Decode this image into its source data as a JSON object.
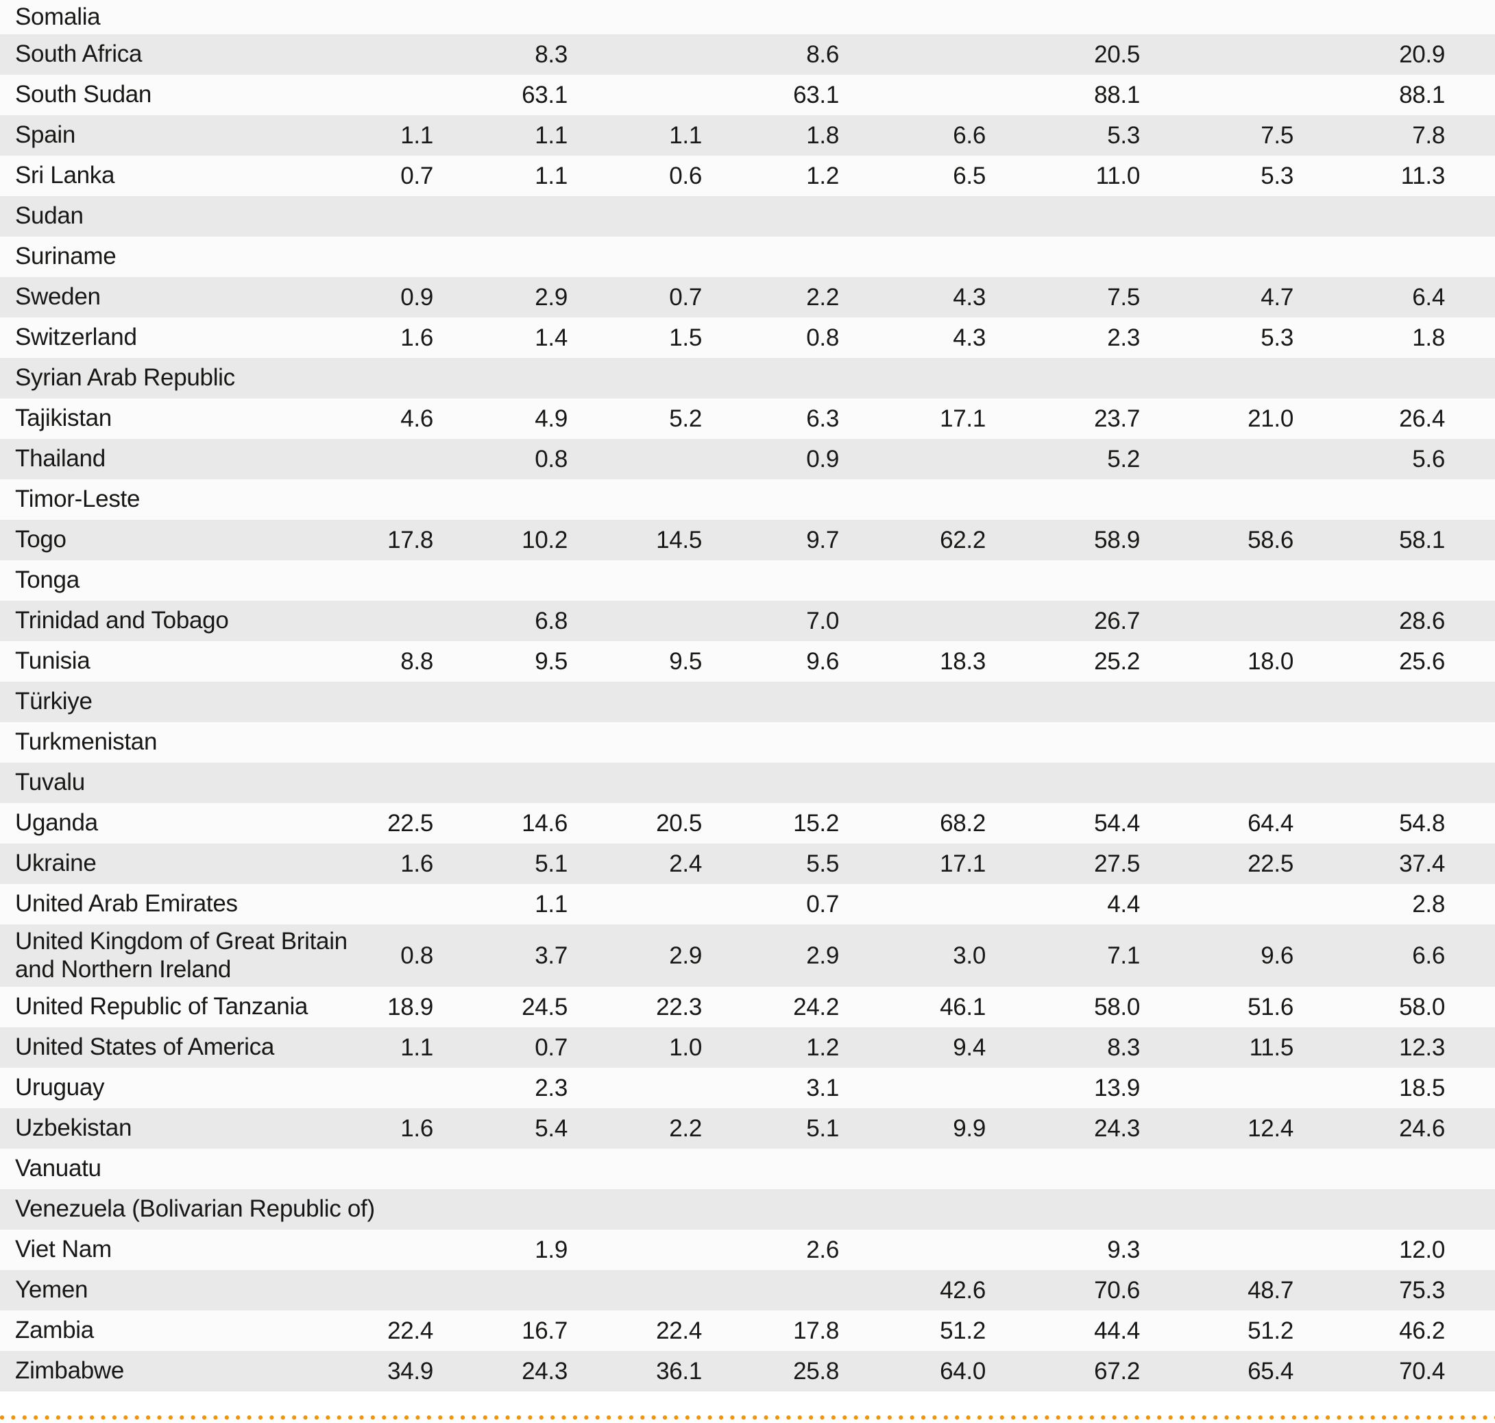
{
  "colors": {
    "shaded_row": "#e9e9e9",
    "plain_row": "#fbfbfb",
    "text": "#171715",
    "dot_accent": "#f0940a"
  },
  "table": {
    "num_value_columns": 8,
    "rows": [
      {
        "country": "Somalia",
        "values": [
          "",
          "",
          "",
          "",
          "",
          "",
          "",
          ""
        ]
      },
      {
        "country": "South Africa",
        "values": [
          "",
          "8.3",
          "",
          "8.6",
          "",
          "20.5",
          "",
          "20.9"
        ]
      },
      {
        "country": "South Sudan",
        "values": [
          "",
          "63.1",
          "",
          "63.1",
          "",
          "88.1",
          "",
          "88.1"
        ]
      },
      {
        "country": "Spain",
        "values": [
          "1.1",
          "1.1",
          "1.1",
          "1.8",
          "6.6",
          "5.3",
          "7.5",
          "7.8"
        ]
      },
      {
        "country": "Sri Lanka",
        "values": [
          "0.7",
          "1.1",
          "0.6",
          "1.2",
          "6.5",
          "11.0",
          "5.3",
          "11.3"
        ]
      },
      {
        "country": "Sudan",
        "values": [
          "",
          "",
          "",
          "",
          "",
          "",
          "",
          ""
        ]
      },
      {
        "country": "Suriname",
        "values": [
          "",
          "",
          "",
          "",
          "",
          "",
          "",
          ""
        ]
      },
      {
        "country": "Sweden",
        "values": [
          "0.9",
          "2.9",
          "0.7",
          "2.2",
          "4.3",
          "7.5",
          "4.7",
          "6.4"
        ]
      },
      {
        "country": "Switzerland",
        "values": [
          "1.6",
          "1.4",
          "1.5",
          "0.8",
          "4.3",
          "2.3",
          "5.3",
          "1.8"
        ]
      },
      {
        "country": "Syrian Arab Republic",
        "values": [
          "",
          "",
          "",
          "",
          "",
          "",
          "",
          ""
        ]
      },
      {
        "country": "Tajikistan",
        "values": [
          "4.6",
          "4.9",
          "5.2",
          "6.3",
          "17.1",
          "23.7",
          "21.0",
          "26.4"
        ]
      },
      {
        "country": "Thailand",
        "values": [
          "",
          "0.8",
          "",
          "0.9",
          "",
          "5.2",
          "",
          "5.6"
        ]
      },
      {
        "country": "Timor-Leste",
        "values": [
          "",
          "",
          "",
          "",
          "",
          "",
          "",
          ""
        ]
      },
      {
        "country": "Togo",
        "values": [
          "17.8",
          "10.2",
          "14.5",
          "9.7",
          "62.2",
          "58.9",
          "58.6",
          "58.1"
        ]
      },
      {
        "country": "Tonga",
        "values": [
          "",
          "",
          "",
          "",
          "",
          "",
          "",
          ""
        ]
      },
      {
        "country": "Trinidad and Tobago",
        "values": [
          "",
          "6.8",
          "",
          "7.0",
          "",
          "26.7",
          "",
          "28.6"
        ]
      },
      {
        "country": "Tunisia",
        "values": [
          "8.8",
          "9.5",
          "9.5",
          "9.6",
          "18.3",
          "25.2",
          "18.0",
          "25.6"
        ]
      },
      {
        "country": "Türkiye",
        "values": [
          "",
          "",
          "",
          "",
          "",
          "",
          "",
          ""
        ]
      },
      {
        "country": "Turkmenistan",
        "values": [
          "",
          "",
          "",
          "",
          "",
          "",
          "",
          ""
        ]
      },
      {
        "country": "Tuvalu",
        "values": [
          "",
          "",
          "",
          "",
          "",
          "",
          "",
          ""
        ]
      },
      {
        "country": "Uganda",
        "values": [
          "22.5",
          "14.6",
          "20.5",
          "15.2",
          "68.2",
          "54.4",
          "64.4",
          "54.8"
        ]
      },
      {
        "country": "Ukraine",
        "values": [
          "1.6",
          "5.1",
          "2.4",
          "5.5",
          "17.1",
          "27.5",
          "22.5",
          "37.4"
        ]
      },
      {
        "country": "United Arab Emirates",
        "values": [
          "",
          "1.1",
          "",
          "0.7",
          "",
          "4.4",
          "",
          "2.8"
        ]
      },
      {
        "country": "United Kingdom of Great Britain\nand Northern Ireland",
        "values": [
          "0.8",
          "3.7",
          "2.9",
          "2.9",
          "3.0",
          "7.1",
          "9.6",
          "6.6"
        ]
      },
      {
        "country": "United Republic of Tanzania",
        "values": [
          "18.9",
          "24.5",
          "22.3",
          "24.2",
          "46.1",
          "58.0",
          "51.6",
          "58.0"
        ]
      },
      {
        "country": "United States of America",
        "values": [
          "1.1",
          "0.7",
          "1.0",
          "1.2",
          "9.4",
          "8.3",
          "11.5",
          "12.3"
        ]
      },
      {
        "country": "Uruguay",
        "values": [
          "",
          "2.3",
          "",
          "3.1",
          "",
          "13.9",
          "",
          "18.5"
        ]
      },
      {
        "country": "Uzbekistan",
        "values": [
          "1.6",
          "5.4",
          "2.2",
          "5.1",
          "9.9",
          "24.3",
          "12.4",
          "24.6"
        ]
      },
      {
        "country": "Vanuatu",
        "values": [
          "",
          "",
          "",
          "",
          "",
          "",
          "",
          ""
        ]
      },
      {
        "country": "Venezuela (Bolivarian Republic of)",
        "values": [
          "",
          "",
          "",
          "",
          "",
          "",
          "",
          ""
        ]
      },
      {
        "country": "Viet Nam",
        "values": [
          "",
          "1.9",
          "",
          "2.6",
          "",
          "9.3",
          "",
          "12.0"
        ]
      },
      {
        "country": "Yemen",
        "values": [
          "",
          "",
          "",
          "",
          "42.6",
          "70.6",
          "48.7",
          "75.3"
        ]
      },
      {
        "country": "Zambia",
        "values": [
          "22.4",
          "16.7",
          "22.4",
          "17.8",
          "51.2",
          "44.4",
          "51.2",
          "46.2"
        ]
      },
      {
        "country": "Zimbabwe",
        "values": [
          "34.9",
          "24.3",
          "36.1",
          "25.8",
          "64.0",
          "67.2",
          "65.4",
          "70.4"
        ]
      }
    ]
  }
}
